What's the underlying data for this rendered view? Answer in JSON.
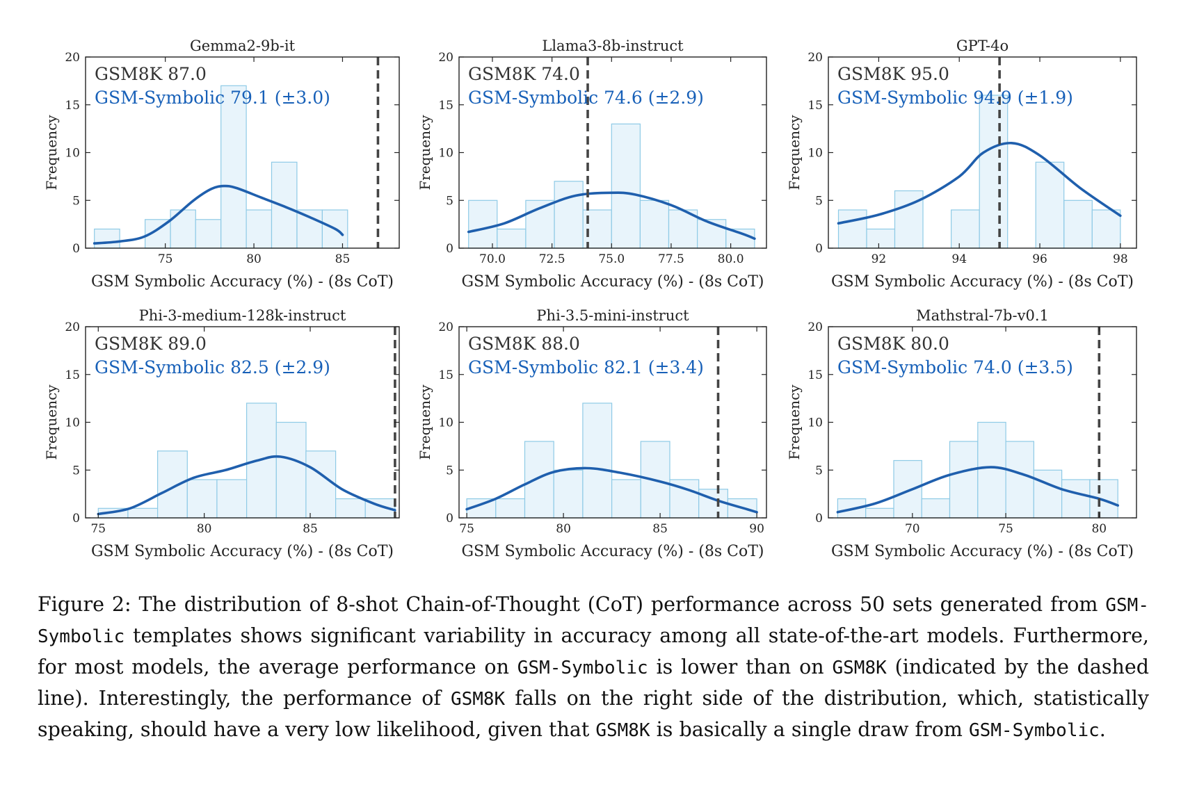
{
  "chart_data": [
    {
      "type": "bar",
      "title": "Gemma2-9b-it",
      "xlabel": "GSM Symbolic Accuracy (%) - (8s CoT)",
      "ylabel": "Frequency",
      "xlim": [
        70.5,
        88.2
      ],
      "ylim": [
        0,
        20
      ],
      "xticks": [
        75,
        80,
        85
      ],
      "xtick_labels": [
        "75",
        "80",
        "85"
      ],
      "yticks": [
        0,
        5,
        10,
        15,
        20
      ],
      "bins": [
        71,
        72.43,
        73.86,
        75.29,
        76.71,
        78.14,
        79.57,
        81,
        82.43,
        83.86,
        85.29
      ],
      "counts": [
        2,
        0,
        3,
        4,
        3,
        17,
        4,
        9,
        4,
        4
      ],
      "kde": {
        "x": [
          71,
          72.4,
          73.8,
          75.2,
          76.6,
          77.6,
          78.3,
          79,
          80.4,
          81.8,
          83.2,
          84.6,
          85
        ],
        "y": [
          0.5,
          0.7,
          1.2,
          2.8,
          5.0,
          6.2,
          6.5,
          6.3,
          5.3,
          4.3,
          3.2,
          2.0,
          1.4
        ]
      },
      "reference": {
        "label": "GSM8K",
        "value": 87.0
      },
      "annotation_gsm8k": "GSM8K 87.0",
      "annotation_symbolic": "GSM-Symbolic 79.1 (±3.0)"
    },
    {
      "type": "bar",
      "title": "Llama3-8b-instruct",
      "xlabel": "GSM Symbolic Accuracy (%) - (8s CoT)",
      "ylabel": "Frequency",
      "xlim": [
        68.6,
        81.5
      ],
      "ylim": [
        0,
        20
      ],
      "xticks": [
        70.0,
        72.5,
        75.0,
        77.5,
        80.0
      ],
      "xtick_labels": [
        "70.0",
        "72.5",
        "75.0",
        "77.5",
        "80.0"
      ],
      "yticks": [
        0,
        5,
        10,
        15,
        20
      ],
      "bins": [
        69,
        70.2,
        71.4,
        72.6,
        73.8,
        75,
        76.2,
        77.4,
        78.6,
        79.8,
        81
      ],
      "counts": [
        5,
        2,
        5,
        7,
        4,
        13,
        5,
        4,
        3,
        2
      ],
      "kde": {
        "x": [
          69,
          70.5,
          72,
          73.5,
          75,
          76,
          77.5,
          79,
          80.5,
          81
        ],
        "y": [
          1.7,
          2.6,
          4.2,
          5.5,
          5.8,
          5.6,
          4.5,
          2.8,
          1.5,
          1.0
        ]
      },
      "reference": {
        "label": "GSM8K",
        "value": 74.0
      },
      "annotation_gsm8k": "GSM8K 74.0",
      "annotation_symbolic": "GSM-Symbolic 74.6 (±2.9)"
    },
    {
      "type": "bar",
      "title": "GPT-4o",
      "xlabel": "GSM Symbolic Accuracy (%) - (8s CoT)",
      "ylabel": "Frequency",
      "xlim": [
        90.75,
        98.4
      ],
      "ylim": [
        0,
        20
      ],
      "xticks": [
        92,
        94,
        96,
        98
      ],
      "xtick_labels": [
        "92",
        "94",
        "96",
        "98"
      ],
      "yticks": [
        0,
        5,
        10,
        15,
        20
      ],
      "bins": [
        91,
        91.7,
        92.4,
        93.1,
        93.8,
        94.5,
        95.2,
        95.9,
        96.6,
        97.3,
        98
      ],
      "counts": [
        4,
        2,
        6,
        0,
        4,
        16,
        0,
        9,
        5,
        4
      ],
      "kde": {
        "x": [
          91,
          92,
          93,
          94,
          94.6,
          95.3,
          96,
          97,
          98
        ],
        "y": [
          2.6,
          3.5,
          5.0,
          7.5,
          10.0,
          11.0,
          9.7,
          6.3,
          3.4
        ]
      },
      "reference": {
        "label": "GSM8K",
        "value": 95.0
      },
      "annotation_gsm8k": "GSM8K 95.0",
      "annotation_symbolic": "GSM-Symbolic 94.9 (±1.9)"
    },
    {
      "type": "bar",
      "title": "Phi-3-medium-128k-instruct",
      "xlabel": "GSM Symbolic Accuracy (%) - (8s CoT)",
      "ylabel": "Frequency",
      "xlim": [
        74.4,
        89.2
      ],
      "ylim": [
        0,
        20
      ],
      "xticks": [
        75,
        80,
        85
      ],
      "xtick_labels": [
        "75",
        "80",
        "85"
      ],
      "yticks": [
        0,
        5,
        10,
        15,
        20
      ],
      "bins": [
        75,
        76.4,
        77.8,
        79.2,
        80.6,
        82,
        83.4,
        84.8,
        86.2,
        87.6,
        89
      ],
      "counts": [
        1,
        1,
        7,
        4,
        4,
        12,
        10,
        7,
        2,
        2
      ],
      "kde": {
        "x": [
          75,
          76.5,
          78,
          79.5,
          81,
          82.5,
          83.6,
          85,
          86.5,
          88,
          89
        ],
        "y": [
          0.4,
          1.0,
          2.6,
          4.2,
          5.0,
          6.0,
          6.4,
          5.3,
          3.0,
          1.5,
          0.8
        ]
      },
      "reference": {
        "label": "GSM8K",
        "value": 89.0
      },
      "annotation_gsm8k": "GSM8K 89.0",
      "annotation_symbolic": "GSM-Symbolic 82.5 (±2.9)"
    },
    {
      "type": "bar",
      "title": "Phi-3.5-mini-instruct",
      "xlabel": "GSM Symbolic Accuracy (%) - (8s CoT)",
      "ylabel": "Frequency",
      "xlim": [
        74.6,
        90.5
      ],
      "ylim": [
        0,
        20
      ],
      "xticks": [
        75,
        80,
        85,
        90
      ],
      "xtick_labels": [
        "75",
        "80",
        "85",
        "90"
      ],
      "yticks": [
        0,
        5,
        10,
        15,
        20
      ],
      "bins": [
        75,
        76.5,
        78,
        79.5,
        81,
        82.5,
        84,
        85.5,
        87,
        88.5,
        90
      ],
      "counts": [
        2,
        2,
        8,
        5,
        12,
        4,
        8,
        4,
        3,
        2
      ],
      "kde": {
        "x": [
          75,
          76.5,
          78,
          79.5,
          81.2,
          83,
          85,
          86.5,
          88,
          89.5,
          90
        ],
        "y": [
          0.9,
          2.0,
          3.5,
          4.8,
          5.2,
          4.7,
          3.8,
          2.9,
          1.8,
          0.9,
          0.6
        ]
      },
      "reference": {
        "label": "GSM8K",
        "value": 88.0
      },
      "annotation_gsm8k": "GSM8K 88.0",
      "annotation_symbolic": "GSM-Symbolic 82.1 (±3.4)"
    },
    {
      "type": "bar",
      "title": "Mathstral-7b-v0.1",
      "xlabel": "GSM Symbolic Accuracy (%) - (8s CoT)",
      "ylabel": "Frequency",
      "xlim": [
        65.5,
        82.0
      ],
      "ylim": [
        0,
        20
      ],
      "xticks": [
        70,
        75,
        80
      ],
      "xtick_labels": [
        "70",
        "75",
        "80"
      ],
      "yticks": [
        0,
        5,
        10,
        15,
        20
      ],
      "bins": [
        66,
        67.5,
        69,
        70.5,
        72,
        73.5,
        75,
        76.5,
        78,
        79.5,
        81
      ],
      "counts": [
        2,
        1,
        6,
        2,
        8,
        10,
        8,
        5,
        4,
        4
      ],
      "kde": {
        "x": [
          66,
          68,
          70,
          72,
          74.2,
          76,
          78,
          80,
          81
        ],
        "y": [
          0.6,
          1.5,
          3.0,
          4.5,
          5.3,
          4.5,
          3.0,
          2.0,
          1.3
        ]
      },
      "reference": {
        "label": "GSM8K",
        "value": 80.0
      },
      "annotation_gsm8k": "GSM8K 80.0",
      "annotation_symbolic": "GSM-Symbolic 74.0 (±3.5)"
    }
  ],
  "caption": {
    "p1": "Figure 2: The distribution of 8-shot Chain-of-Thought (CoT) performance across 50 sets generated from ",
    "m1": "GSM-Symbolic",
    "p2": " templates shows significant variability in accuracy among all state-of-the-art models. Furthermore, for most models, the average performance on ",
    "m2": "GSM-Symbolic",
    "p3": " is lower than on ",
    "m3": "GSM8K",
    "p4": " (indicated by the dashed line). Interestingly, the performance of ",
    "m4": "GSM8K",
    "p5": " falls on the right side of the distribution, which, statistically speaking, should have a very low likelihood, given that ",
    "m5": "GSM8K",
    "p6": "  is basically a single draw from ",
    "m6": "GSM-Symbolic",
    "p7": "."
  }
}
